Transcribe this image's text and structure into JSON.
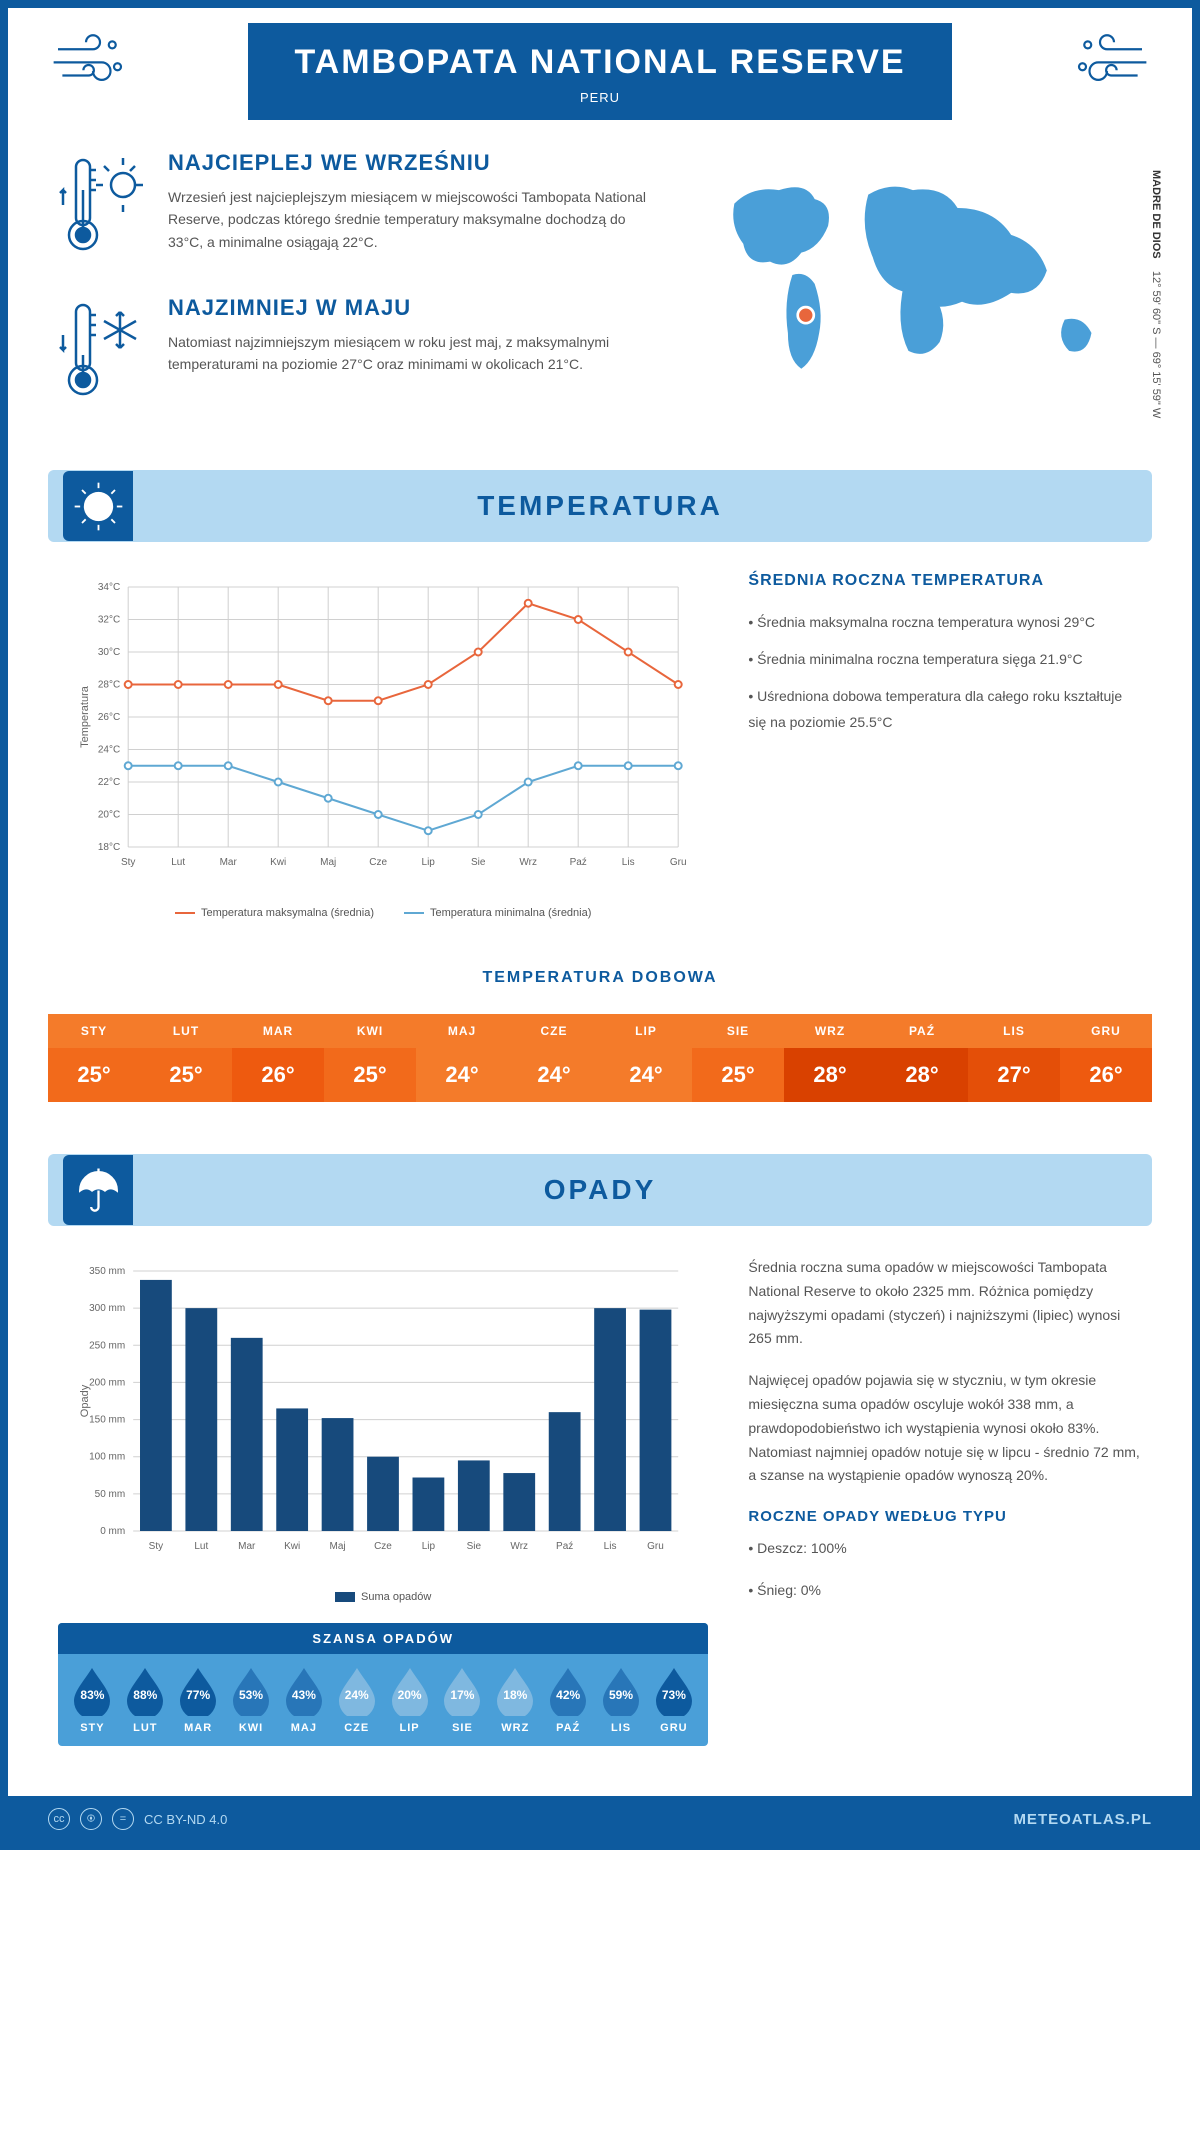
{
  "header": {
    "title": "TAMBOPATA NATIONAL RESERVE",
    "country": "PERU"
  },
  "coords": {
    "lat": "12° 59' 60\" S",
    "lon": "69° 15' 59\" W",
    "region": "MADRE DE DIOS"
  },
  "warmest": {
    "title": "NAJCIEPLEJ WE WRZEŚNIU",
    "text": "Wrzesień jest najcieplejszym miesiącem w miejscowości Tambopata National Reserve, podczas którego średnie temperatury maksymalne dochodzą do 33°C, a minimalne osiągają 22°C."
  },
  "coldest": {
    "title": "NAJZIMNIEJ W MAJU",
    "text": "Natomiast najzimniejszym miesiącem w roku jest maj, z maksymalnymi temperaturami na poziomie 27°C oraz minimami w okolicach 21°C."
  },
  "temperature_section": {
    "title": "TEMPERATURA",
    "chart": {
      "type": "line",
      "months": [
        "Sty",
        "Lut",
        "Mar",
        "Kwi",
        "Maj",
        "Cze",
        "Lip",
        "Sie",
        "Wrz",
        "Paź",
        "Lis",
        "Gru"
      ],
      "max_series": {
        "label": "Temperatura maksymalna (średnia)",
        "color": "#e8663c",
        "values": [
          28,
          28,
          28,
          28,
          27,
          27,
          28,
          30,
          33,
          32,
          30,
          28
        ]
      },
      "min_series": {
        "label": "Temperatura minimalna (średnia)",
        "color": "#5fa8d3",
        "values": [
          23,
          23,
          23,
          22,
          21,
          20,
          19,
          20,
          22,
          23,
          23,
          23
        ]
      },
      "ylabel": "Temperatura",
      "ylim": [
        18,
        34
      ],
      "ytick_step": 2,
      "y_unit": "°C",
      "grid_color": "#d0d0d0",
      "background_color": "#ffffff",
      "marker": "circle",
      "line_width": 2
    },
    "annual": {
      "title": "ŚREDNIA ROCZNA TEMPERATURA",
      "bullets": [
        "Średnia maksymalna roczna temperatura wynosi 29°C",
        "Średnia minimalna roczna temperatura sięga 21.9°C",
        "Uśredniona dobowa temperatura dla całego roku kształtuje się na poziomie 25.5°C"
      ]
    },
    "daily": {
      "title": "TEMPERATURA DOBOWA",
      "months": [
        "STY",
        "LUT",
        "MAR",
        "KWI",
        "MAJ",
        "CZE",
        "LIP",
        "SIE",
        "WRZ",
        "PAŹ",
        "LIS",
        "GRU"
      ],
      "values": [
        "25°",
        "25°",
        "26°",
        "25°",
        "24°",
        "24°",
        "24°",
        "25°",
        "28°",
        "28°",
        "27°",
        "26°"
      ],
      "header_bg": "#f47b2a",
      "cell_colors": [
        "#f26a1b",
        "#f26a1b",
        "#ee5a0f",
        "#f26a1b",
        "#f47b2a",
        "#f47b2a",
        "#f47b2a",
        "#f26a1b",
        "#d94100",
        "#d94100",
        "#e44f08",
        "#ee5a0f"
      ]
    }
  },
  "precip_section": {
    "title": "OPADY",
    "chart": {
      "type": "bar",
      "months": [
        "Sty",
        "Lut",
        "Mar",
        "Kwi",
        "Maj",
        "Cze",
        "Lip",
        "Sie",
        "Wrz",
        "Paź",
        "Lis",
        "Gru"
      ],
      "values": [
        338,
        300,
        260,
        165,
        152,
        100,
        72,
        95,
        78,
        160,
        300,
        298
      ],
      "bar_color": "#174a7c",
      "ylabel": "Opady",
      "legend_label": "Suma opadów",
      "ylim": [
        0,
        350
      ],
      "ytick_step": 50,
      "y_unit": " mm",
      "grid_color": "#d0d0d0",
      "bar_width": 0.7
    },
    "paragraphs": [
      "Średnia roczna suma opadów w miejscowości Tambopata National Reserve to około 2325 mm. Różnica pomiędzy najwyższymi opadami (styczeń) i najniższymi (lipiec) wynosi 265 mm.",
      "Najwięcej opadów pojawia się w styczniu, w tym okresie miesięczna suma opadów oscyluje wokół 338 mm, a prawdopodobieństwo ich wystąpienia wynosi około 83%. Natomiast najmniej opadów notuje się w lipcu - średnio 72 mm, a szanse na wystąpienie opadów wynoszą 20%."
    ],
    "chance": {
      "title": "SZANSA OPADÓW",
      "months": [
        "STY",
        "LUT",
        "MAR",
        "KWI",
        "MAJ",
        "CZE",
        "LIP",
        "SIE",
        "WRZ",
        "PAŹ",
        "LIS",
        "GRU"
      ],
      "values": [
        "83%",
        "88%",
        "77%",
        "53%",
        "43%",
        "24%",
        "20%",
        "17%",
        "18%",
        "42%",
        "59%",
        "73%"
      ],
      "drop_colors": [
        "#0d5a9e",
        "#0d5a9e",
        "#0d5a9e",
        "#2876b8",
        "#2876b8",
        "#7fb8e0",
        "#7fb8e0",
        "#7fb8e0",
        "#7fb8e0",
        "#2876b8",
        "#2876b8",
        "#0d5a9e"
      ]
    },
    "by_type": {
      "title": "ROCZNE OPADY WEDŁUG TYPU",
      "bullets": [
        "Deszcz: 100%",
        "Śnieg: 0%"
      ]
    }
  },
  "footer": {
    "license": "CC BY-ND 4.0",
    "site": "METEOATLAS.PL"
  },
  "colors": {
    "primary": "#0d5a9e",
    "light_blue": "#b3d9f2",
    "text_gray": "#555555"
  }
}
